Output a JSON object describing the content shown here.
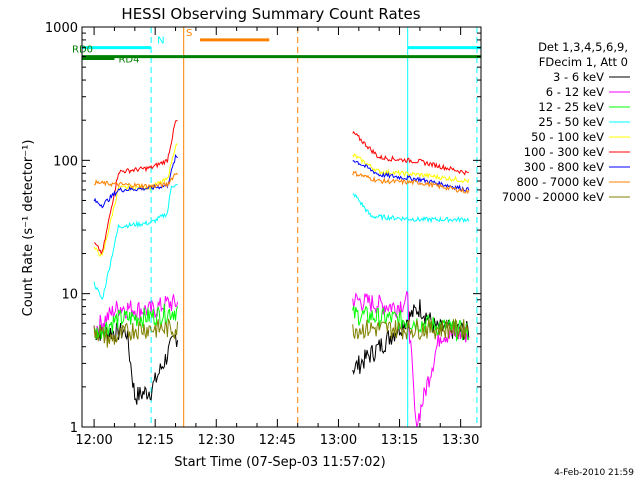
{
  "chart_data": {
    "type": "line",
    "title": "HESSI Observing Summary Count Rates",
    "xlabel": "Start Time (07-Sep-03 11:57:02)",
    "ylabel": "Count Rate (s⁻¹ detector⁻¹)",
    "y_scale": "log",
    "ylim": [
      1,
      1000
    ],
    "xlim": [
      "11:57:02",
      "13:35:00"
    ],
    "x_ticks": [
      "12:00",
      "12:15",
      "12:30",
      "12:45",
      "13:00",
      "13:15",
      "13:30"
    ],
    "y_ticks": [
      "1",
      "10",
      "100",
      "1000"
    ],
    "header_lines": [
      "Det 1,3,4,5,6,9,",
      "FDecim 1, Att 0"
    ],
    "series": [
      {
        "name": "3 - 6 keV",
        "color": "#000000",
        "points": [
          [
            "12:00",
            5.2
          ],
          [
            "12:08",
            5.2
          ],
          [
            "12:10",
            1.7
          ],
          [
            "12:14",
            1.9
          ],
          [
            "12:17",
            3.0
          ],
          [
            "12:20",
            4.8
          ],
          [
            "13:04",
            2.8
          ],
          [
            "13:10",
            4.0
          ],
          [
            "13:20",
            8.0
          ],
          [
            "13:24",
            5.5
          ],
          [
            "13:32",
            5.3
          ]
        ]
      },
      {
        "name": "6 - 12 keV",
        "color": "#ff00ff",
        "points": [
          [
            "12:00",
            5.4
          ],
          [
            "12:06",
            8.0
          ],
          [
            "12:14",
            7.5
          ],
          [
            "12:18",
            8.5
          ],
          [
            "13:04",
            9.0
          ],
          [
            "13:14",
            8.0
          ],
          [
            "13:17",
            9.0
          ],
          [
            "13:19",
            1.0
          ],
          [
            "13:25",
            5.0
          ],
          [
            "13:32",
            5.0
          ]
        ]
      },
      {
        "name": "12 - 25 keV",
        "color": "#00ff00",
        "points": [
          [
            "12:00",
            5.0
          ],
          [
            "12:06",
            6.5
          ],
          [
            "12:14",
            6.8
          ],
          [
            "12:20",
            7.5
          ],
          [
            "13:04",
            7.0
          ],
          [
            "13:14",
            6.5
          ],
          [
            "13:24",
            5.8
          ],
          [
            "13:32",
            5.2
          ]
        ]
      },
      {
        "name": "25 - 50 keV",
        "color": "#00ffff",
        "points": [
          [
            "12:00",
            12
          ],
          [
            "12:02",
            9
          ],
          [
            "12:06",
            32
          ],
          [
            "12:14",
            34
          ],
          [
            "12:18",
            40
          ],
          [
            "12:19",
            65
          ],
          [
            "13:04",
            55
          ],
          [
            "13:08",
            38
          ],
          [
            "13:20",
            36
          ],
          [
            "13:32",
            36
          ]
        ]
      },
      {
        "name": "50 - 100 keV",
        "color": "#ffff00",
        "points": [
          [
            "12:00",
            22
          ],
          [
            "12:02",
            19
          ],
          [
            "12:06",
            62
          ],
          [
            "12:14",
            63
          ],
          [
            "12:18",
            72
          ],
          [
            "12:20",
            130
          ],
          [
            "13:04",
            108
          ],
          [
            "13:10",
            82
          ],
          [
            "13:20",
            78
          ],
          [
            "13:32",
            70
          ]
        ]
      },
      {
        "name": "100 - 300 keV",
        "color": "#ff0000",
        "points": [
          [
            "12:00",
            24
          ],
          [
            "12:02",
            20
          ],
          [
            "12:06",
            82
          ],
          [
            "12:14",
            88
          ],
          [
            "12:18",
            100
          ],
          [
            "12:20",
            195
          ],
          [
            "13:04",
            158
          ],
          [
            "13:10",
            105
          ],
          [
            "13:20",
            98
          ],
          [
            "13:32",
            80
          ]
        ]
      },
      {
        "name": "300 - 800 keV",
        "color": "#0000ff",
        "points": [
          [
            "12:00",
            50
          ],
          [
            "12:02",
            46
          ],
          [
            "12:06",
            60
          ],
          [
            "12:14",
            62
          ],
          [
            "12:18",
            65
          ],
          [
            "12:20",
            105
          ],
          [
            "13:04",
            100
          ],
          [
            "13:10",
            78
          ],
          [
            "13:20",
            72
          ],
          [
            "13:32",
            60
          ]
        ]
      },
      {
        "name": "800 - 7000 keV",
        "color": "#ff8000",
        "points": [
          [
            "12:00",
            68
          ],
          [
            "12:06",
            66
          ],
          [
            "12:14",
            64
          ],
          [
            "12:18",
            66
          ],
          [
            "12:20",
            80
          ],
          [
            "13:04",
            80
          ],
          [
            "13:10",
            70
          ],
          [
            "13:20",
            68
          ],
          [
            "13:32",
            58
          ]
        ]
      },
      {
        "name": "7000 - 20000 keV",
        "color": "#808000",
        "points": [
          [
            "12:00",
            5.5
          ],
          [
            "12:04",
            4.5
          ],
          [
            "12:10",
            5.5
          ],
          [
            "12:20",
            5.5
          ],
          [
            "13:04",
            5.5
          ],
          [
            "13:20",
            5.5
          ],
          [
            "13:32",
            5.5
          ]
        ]
      }
    ],
    "flag_bars": [
      {
        "label": "N",
        "color": "#00ffff",
        "level": 700,
        "spans": [
          [
            "11:57:02",
            "12:14"
          ],
          [
            "13:17",
            "13:35"
          ]
        ]
      },
      {
        "label": "S",
        "color": "#ff8000",
        "level": 800,
        "spans": [
          [
            "12:26",
            "12:43"
          ]
        ]
      },
      {
        "label": "RD0",
        "color": "#008000",
        "level": 600,
        "spans": [
          [
            "11:57:02",
            "13:35"
          ]
        ]
      },
      {
        "label": "RD4",
        "color": "#008000",
        "level": 580,
        "spans": [
          [
            "11:57:02",
            "12:05"
          ]
        ]
      }
    ],
    "vertical_lines": [
      {
        "time": "11:57:02",
        "color": "#00ffff",
        "style": "solid"
      },
      {
        "time": "12:14",
        "color": "#00ffff",
        "style": "dashed"
      },
      {
        "time": "12:22",
        "color": "#ff8000",
        "style": "solid"
      },
      {
        "time": "12:50",
        "color": "#ff8000",
        "style": "dashed"
      },
      {
        "time": "13:17",
        "color": "#00ffff",
        "style": "solid"
      },
      {
        "time": "13:34",
        "color": "#00ffff",
        "style": "dashed"
      }
    ],
    "legend_position": "right",
    "grid": false
  },
  "timestamp": "4-Feb-2010 21:59"
}
